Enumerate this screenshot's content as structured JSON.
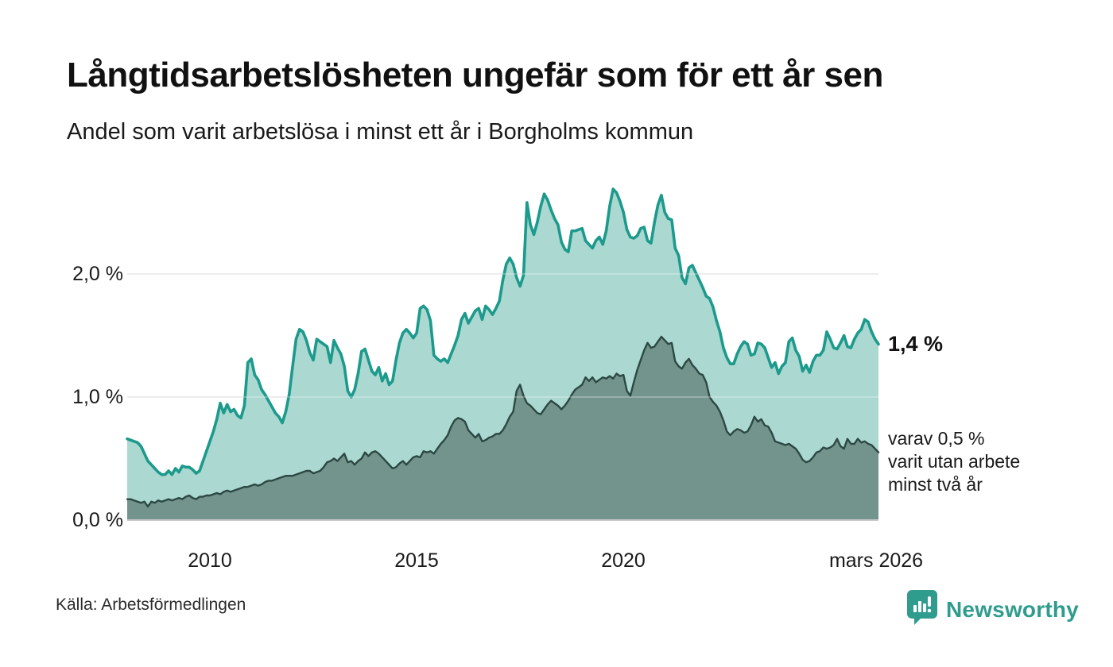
{
  "header": {
    "title": "Långtidsarbetslösheten ungefär som för ett år sen",
    "subtitle": "Andel som varit arbetslösa i minst ett år i Borgholms kommun"
  },
  "chart_data": {
    "type": "area",
    "title": "Långtidsarbetslösheten ungefär som för ett år sen",
    "subtitle": "Andel som varit arbetslösa i minst ett år i Borgholms kommun",
    "unit": "%",
    "frequency": "monthly",
    "x_start": "2008-01",
    "x_end": "2026-03",
    "grid": true,
    "legend": "none",
    "ylim": [
      0,
      2.74
    ],
    "y_ticks": [
      "0,0 %",
      "1,0 %",
      "2,0 %"
    ],
    "y_tick_values": [
      0,
      1,
      2
    ],
    "x_ticks": [
      "2010",
      "2015",
      "2020",
      "mars 2026"
    ],
    "x_tick_month_index": [
      24,
      84,
      144,
      218
    ],
    "colors": {
      "series1_line": "#1c9a8c",
      "series1_fill": "#abd8d1",
      "series2_line": "#2c4843",
      "series2_fill": "#73948d",
      "gridline": "#dcdcdc",
      "baseline": "#c9c9c9"
    },
    "series": [
      {
        "name": "Andel arbetslösa minst ett år",
        "latest_value": 1.4,
        "values": [
          0.66,
          0.65,
          0.64,
          0.63,
          0.6,
          0.54,
          0.48,
          0.45,
          0.42,
          0.39,
          0.37,
          0.37,
          0.4,
          0.37,
          0.42,
          0.39,
          0.44,
          0.43,
          0.43,
          0.41,
          0.38,
          0.4,
          0.48,
          0.56,
          0.64,
          0.72,
          0.82,
          0.95,
          0.87,
          0.94,
          0.88,
          0.9,
          0.85,
          0.83,
          0.93,
          1.28,
          1.31,
          1.18,
          1.14,
          1.06,
          1.02,
          0.97,
          0.92,
          0.87,
          0.84,
          0.79,
          0.88,
          1.02,
          1.25,
          1.47,
          1.55,
          1.53,
          1.46,
          1.36,
          1.3,
          1.47,
          1.45,
          1.43,
          1.41,
          1.28,
          1.46,
          1.4,
          1.35,
          1.25,
          1.05,
          1.0,
          1.06,
          1.19,
          1.37,
          1.39,
          1.3,
          1.21,
          1.18,
          1.24,
          1.13,
          1.19,
          1.1,
          1.13,
          1.3,
          1.44,
          1.52,
          1.55,
          1.52,
          1.48,
          1.52,
          1.72,
          1.74,
          1.71,
          1.62,
          1.34,
          1.31,
          1.29,
          1.31,
          1.28,
          1.35,
          1.42,
          1.5,
          1.63,
          1.68,
          1.6,
          1.65,
          1.7,
          1.72,
          1.63,
          1.74,
          1.71,
          1.67,
          1.72,
          1.78,
          1.95,
          2.08,
          2.13,
          2.08,
          1.97,
          1.9,
          1.99,
          2.58,
          2.4,
          2.32,
          2.42,
          2.55,
          2.65,
          2.6,
          2.52,
          2.45,
          2.4,
          2.26,
          2.2,
          2.18,
          2.35,
          2.35,
          2.36,
          2.37,
          2.27,
          2.24,
          2.21,
          2.27,
          2.3,
          2.24,
          2.35,
          2.55,
          2.69,
          2.66,
          2.59,
          2.5,
          2.36,
          2.3,
          2.29,
          2.31,
          2.37,
          2.38,
          2.27,
          2.25,
          2.42,
          2.56,
          2.64,
          2.5,
          2.45,
          2.44,
          2.21,
          2.15,
          1.97,
          1.92,
          2.05,
          2.07,
          2.01,
          1.95,
          1.89,
          1.82,
          1.8,
          1.73,
          1.62,
          1.53,
          1.4,
          1.32,
          1.27,
          1.27,
          1.35,
          1.41,
          1.45,
          1.43,
          1.34,
          1.35,
          1.44,
          1.43,
          1.4,
          1.32,
          1.24,
          1.28,
          1.19,
          1.25,
          1.28,
          1.45,
          1.48,
          1.38,
          1.33,
          1.21,
          1.26,
          1.2,
          1.29,
          1.34,
          1.34,
          1.38,
          1.53,
          1.47,
          1.4,
          1.39,
          1.44,
          1.5,
          1.41,
          1.4,
          1.47,
          1.52,
          1.55,
          1.63,
          1.61,
          1.53,
          1.47,
          1.43
        ]
      },
      {
        "name": "varav arbetslösa minst två år",
        "latest_value": 0.5,
        "values": [
          0.17,
          0.17,
          0.16,
          0.15,
          0.14,
          0.15,
          0.11,
          0.15,
          0.14,
          0.16,
          0.15,
          0.16,
          0.17,
          0.16,
          0.17,
          0.18,
          0.17,
          0.19,
          0.2,
          0.18,
          0.17,
          0.19,
          0.19,
          0.2,
          0.2,
          0.21,
          0.22,
          0.21,
          0.23,
          0.24,
          0.23,
          0.24,
          0.25,
          0.26,
          0.27,
          0.27,
          0.28,
          0.29,
          0.28,
          0.29,
          0.31,
          0.32,
          0.32,
          0.33,
          0.34,
          0.35,
          0.36,
          0.36,
          0.36,
          0.37,
          0.38,
          0.39,
          0.4,
          0.4,
          0.38,
          0.39,
          0.4,
          0.43,
          0.47,
          0.48,
          0.5,
          0.48,
          0.51,
          0.54,
          0.47,
          0.48,
          0.45,
          0.48,
          0.5,
          0.55,
          0.52,
          0.55,
          0.56,
          0.54,
          0.51,
          0.48,
          0.45,
          0.42,
          0.43,
          0.46,
          0.48,
          0.45,
          0.48,
          0.51,
          0.52,
          0.51,
          0.56,
          0.55,
          0.56,
          0.54,
          0.58,
          0.62,
          0.65,
          0.69,
          0.76,
          0.81,
          0.83,
          0.82,
          0.8,
          0.73,
          0.7,
          0.67,
          0.7,
          0.64,
          0.65,
          0.67,
          0.68,
          0.7,
          0.7,
          0.73,
          0.78,
          0.84,
          0.88,
          1.05,
          1.1,
          1.01,
          0.95,
          0.93,
          0.9,
          0.87,
          0.86,
          0.9,
          0.94,
          0.97,
          0.95,
          0.93,
          0.9,
          0.93,
          0.97,
          1.02,
          1.06,
          1.08,
          1.1,
          1.16,
          1.13,
          1.16,
          1.12,
          1.14,
          1.16,
          1.15,
          1.17,
          1.15,
          1.19,
          1.17,
          1.18,
          1.05,
          1.01,
          1.12,
          1.22,
          1.3,
          1.38,
          1.44,
          1.4,
          1.41,
          1.45,
          1.49,
          1.46,
          1.43,
          1.44,
          1.29,
          1.25,
          1.23,
          1.28,
          1.31,
          1.26,
          1.23,
          1.19,
          1.18,
          1.12,
          1.0,
          0.96,
          0.93,
          0.88,
          0.81,
          0.72,
          0.69,
          0.72,
          0.74,
          0.73,
          0.71,
          0.72,
          0.77,
          0.84,
          0.8,
          0.82,
          0.77,
          0.76,
          0.71,
          0.64,
          0.63,
          0.62,
          0.61,
          0.62,
          0.6,
          0.58,
          0.54,
          0.49,
          0.47,
          0.48,
          0.51,
          0.55,
          0.56,
          0.59,
          0.58,
          0.59,
          0.61,
          0.66,
          0.6,
          0.58,
          0.66,
          0.62,
          0.62,
          0.66,
          0.63,
          0.64,
          0.62,
          0.61,
          0.58,
          0.55
        ]
      }
    ],
    "annotations": {
      "latest_value_label": "1,4 %",
      "secondary_line1": "varav 0,5 %",
      "secondary_line2": "varit utan arbete",
      "secondary_line3": "minst två år"
    }
  },
  "footer": {
    "source": "Källa: Arbetsförmedlingen",
    "brand": "Newsworthy",
    "brand_color": "#2f9c8d"
  }
}
